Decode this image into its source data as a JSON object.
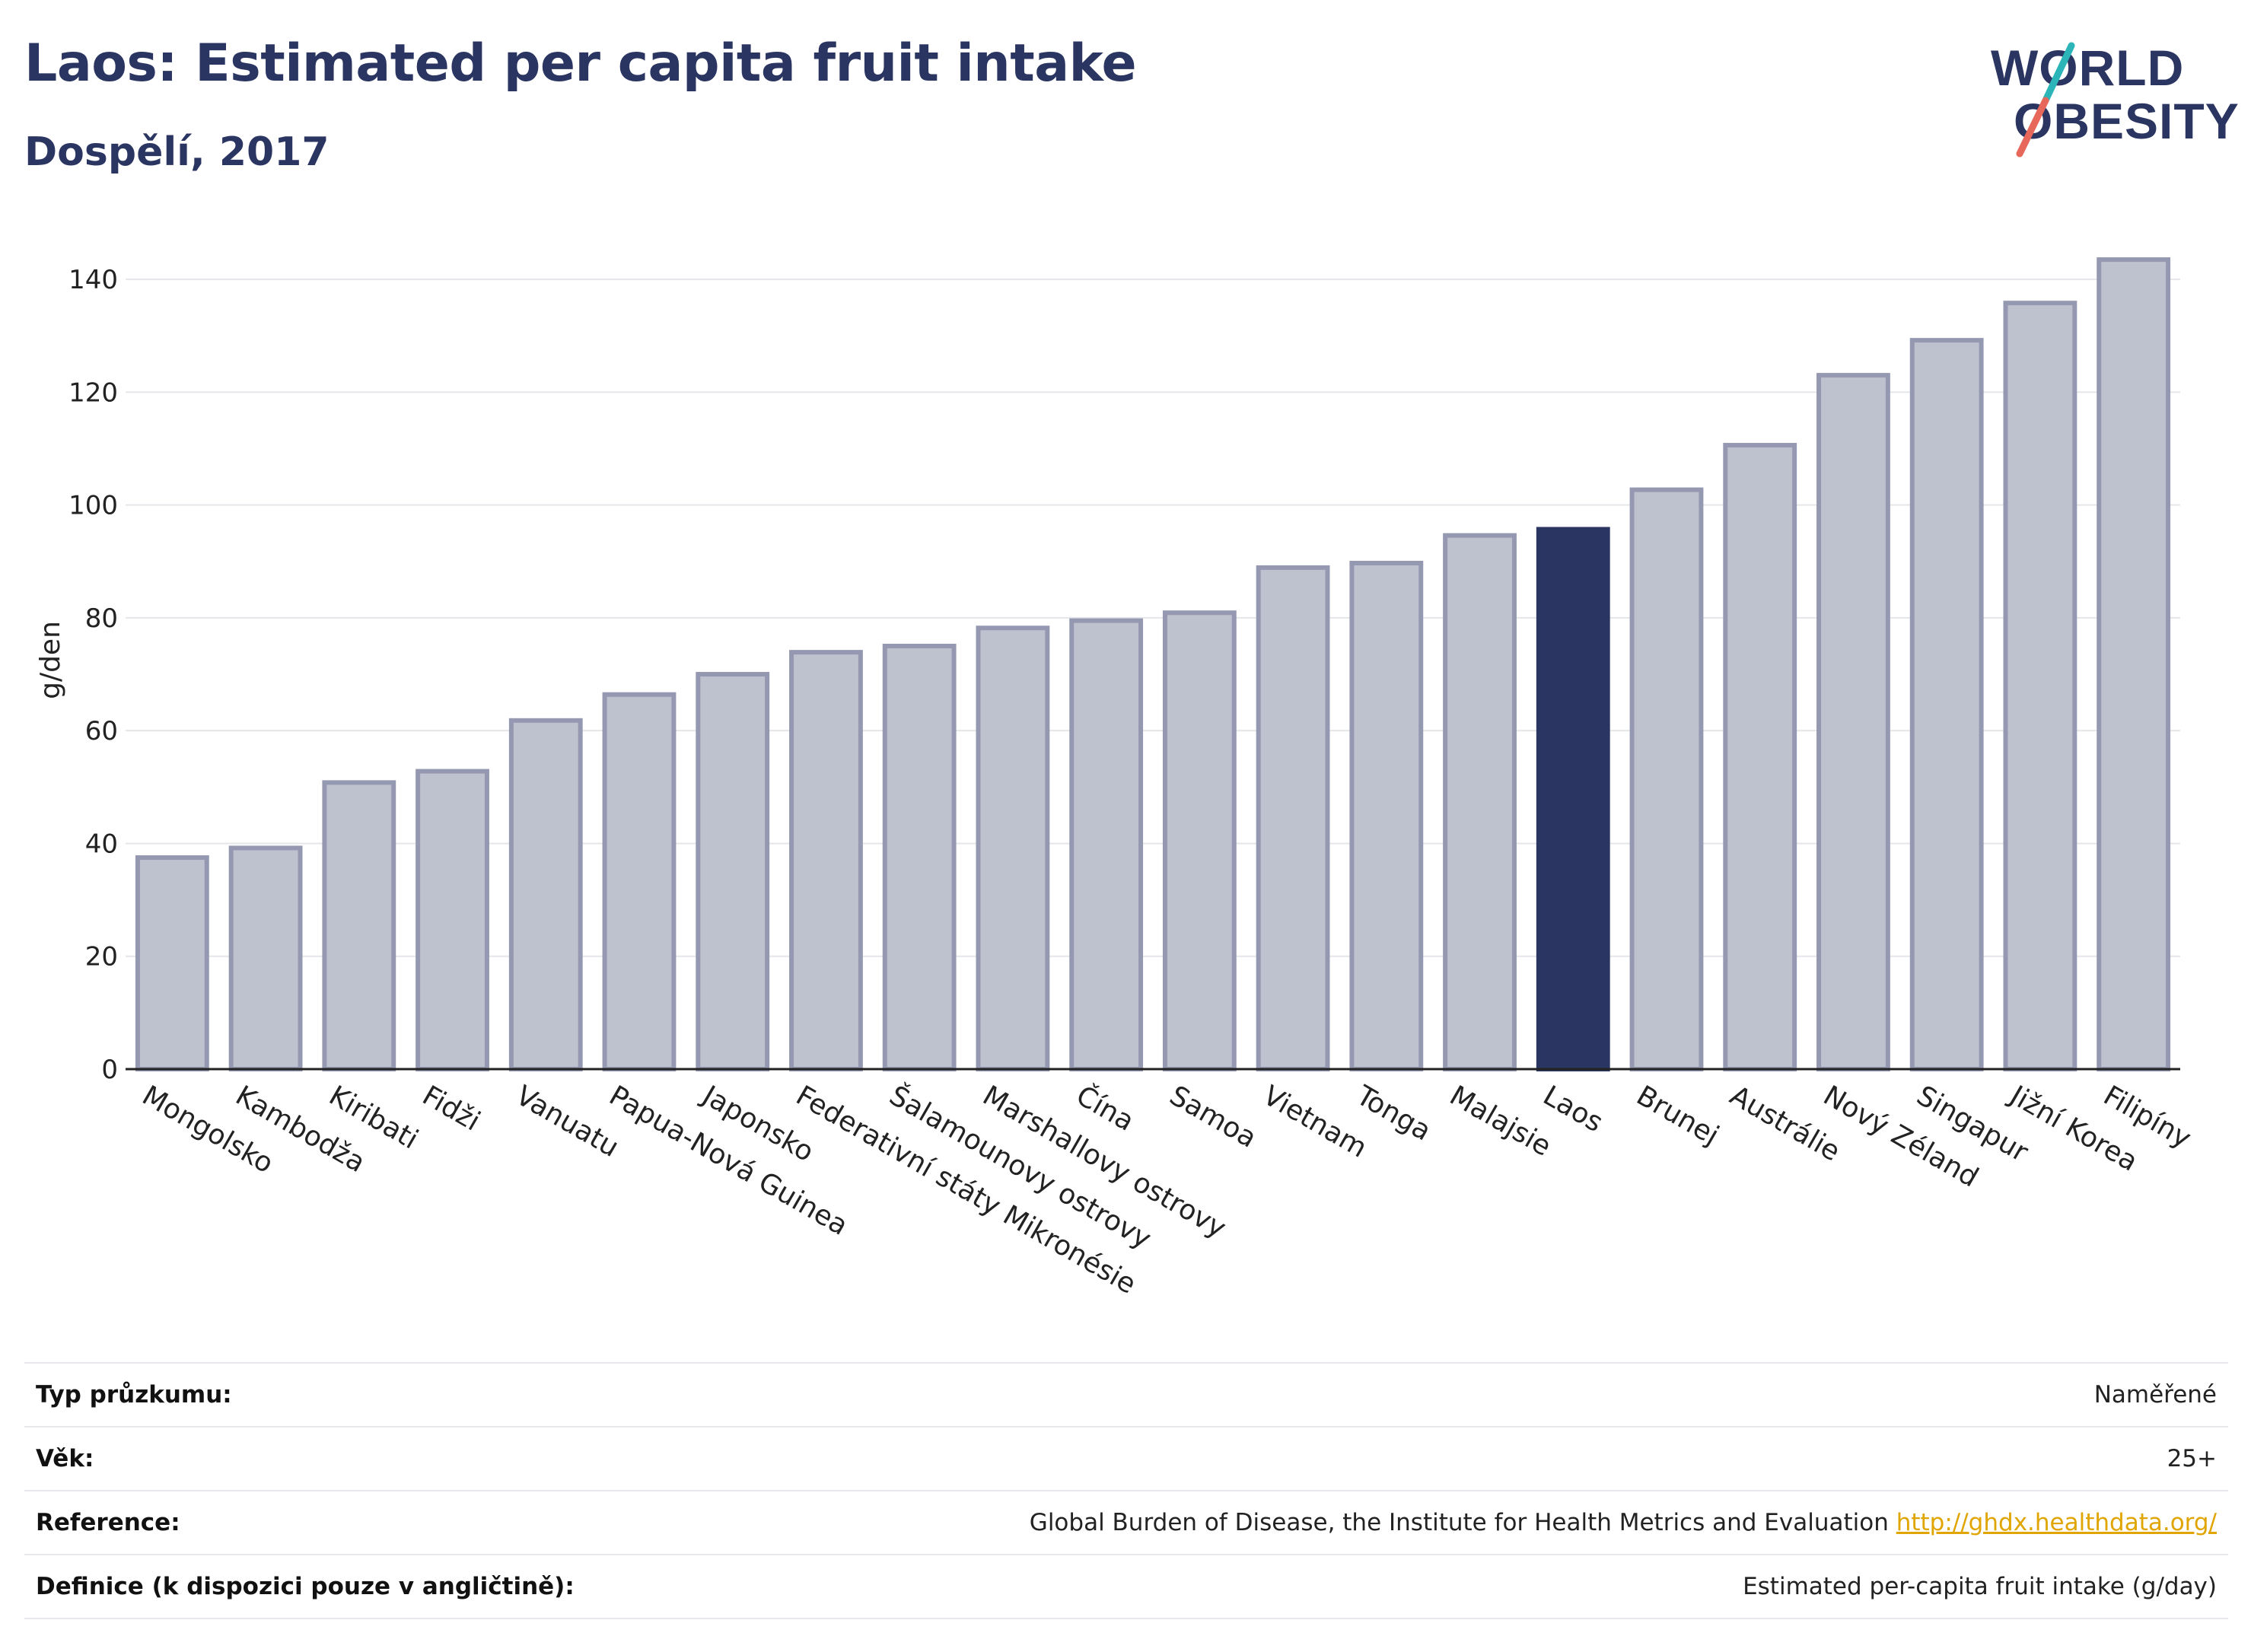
{
  "header": {
    "title": "Laos: Estimated per capita fruit intake",
    "subtitle": "Dospělí, 2017",
    "logo_line1": "WORLD",
    "logo_line2": "OBESITY"
  },
  "colors": {
    "bar_default": "#bec2cf",
    "bar_default_border": "#9499b1",
    "bar_highlight": "#2b3562",
    "title": "#2b3562",
    "link": "#e0a500",
    "logo_slash_teal": "#2bb5b8",
    "logo_slash_red": "#e8675b"
  },
  "chart_data": {
    "type": "bar",
    "ylabel": "g/den",
    "xlabel": "",
    "ylim": [
      0,
      145
    ],
    "yticks": [
      0,
      20,
      40,
      60,
      80,
      100,
      120,
      140
    ],
    "grid": true,
    "highlight": "Laos",
    "categories": [
      "Mongolsko",
      "Kambodža",
      "Kiribati",
      "Fidži",
      "Vanuatu",
      "Papua-Nová Guinea",
      "Japonsko",
      "Federativní státy Mikronésie",
      "Šalamounovy ostrovy",
      "Marshallovy ostrovy",
      "Čína",
      "Samoa",
      "Vietnam",
      "Tonga",
      "Malajsie",
      "Laos",
      "Brunej",
      "Austrálie",
      "Nový Zéland",
      "Singapur",
      "Jižní Korea",
      "Filipíny"
    ],
    "values": [
      37.5,
      39.2,
      50.8,
      52.8,
      61.8,
      66.4,
      70.0,
      73.9,
      75.0,
      78.2,
      79.5,
      80.9,
      88.9,
      89.7,
      94.6,
      95.7,
      102.7,
      110.6,
      123.0,
      129.2,
      135.8,
      143.5
    ]
  },
  "info": {
    "rows": [
      {
        "key": "Typ průzkumu:",
        "value": "Naměřené"
      },
      {
        "key": "Věk:",
        "value": "25+"
      },
      {
        "key": "Reference:",
        "value": "Global Burden of Disease, the Institute for Health Metrics and Evaluation",
        "link": "http://ghdx.healthdata.org/"
      },
      {
        "key": "Definice (k dispozici pouze v angličtině):",
        "value": "Estimated per-capita fruit intake (g/day)"
      }
    ]
  }
}
